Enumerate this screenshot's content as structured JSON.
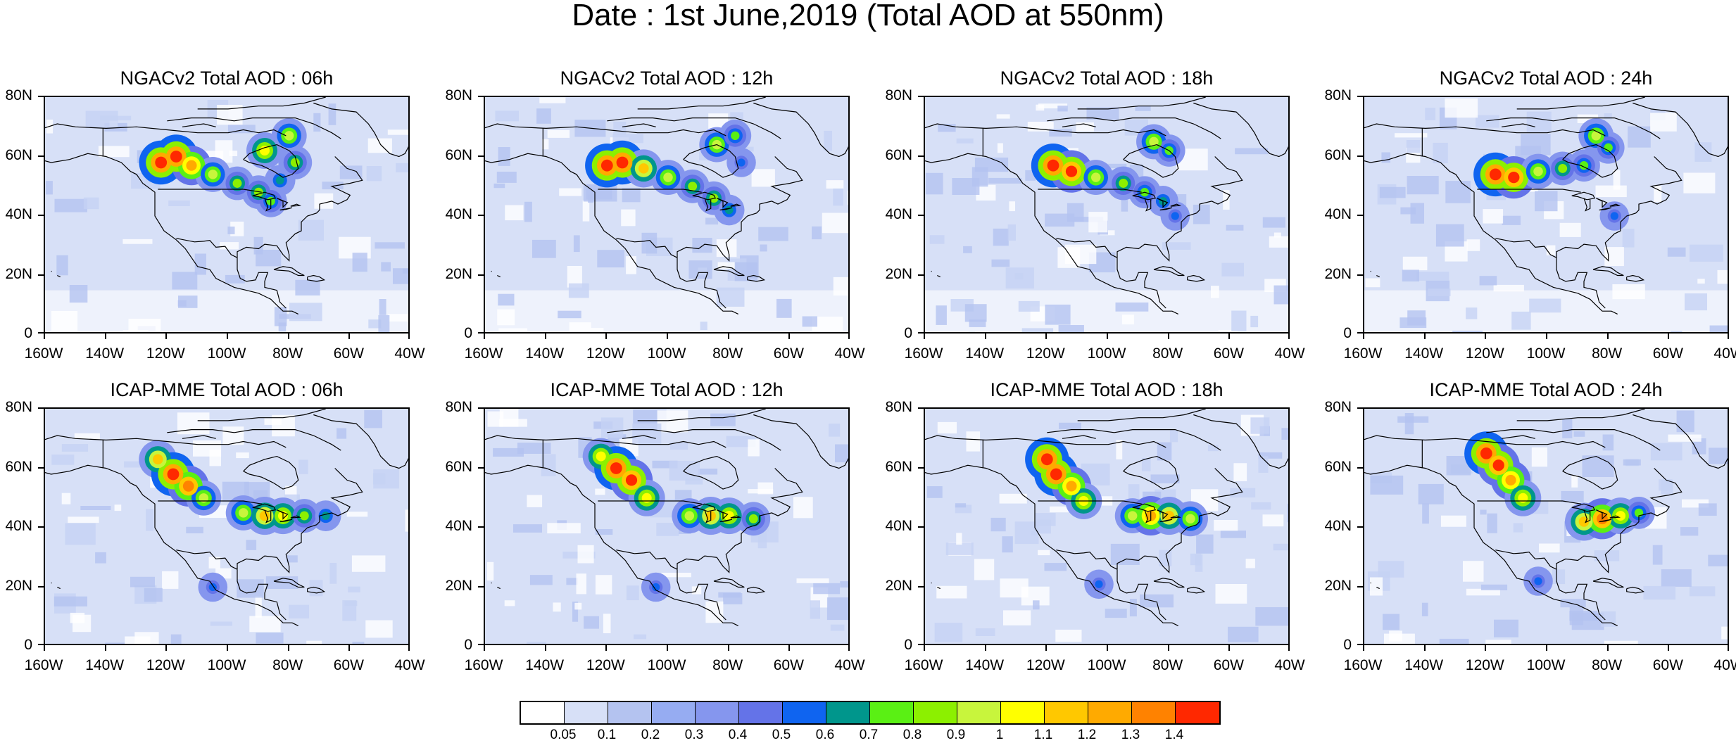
{
  "title": "Date : 1st June,2019 (Total AOD at 550nm)",
  "panels": [
    {
      "title": "NGACv2 Total AOD : 06h"
    },
    {
      "title": "NGACv2 Total AOD : 12h"
    },
    {
      "title": "NGACv2 Total AOD : 18h"
    },
    {
      "title": "NGACv2 Total AOD : 24h"
    },
    {
      "title": "ICAP-MME Total AOD : 06h"
    },
    {
      "title": "ICAP-MME Total AOD : 12h"
    },
    {
      "title": "ICAP-MME Total AOD : 18h"
    },
    {
      "title": "ICAP-MME Total AOD : 24h"
    }
  ],
  "axes": {
    "lat_labels": [
      "80N",
      "60N",
      "40N",
      "20N",
      "0"
    ],
    "lon_labels": [
      "160W",
      "140W",
      "120W",
      "100W",
      "80W",
      "60W",
      "40W"
    ]
  },
  "colorbar": {
    "labels": [
      "0.05",
      "0.1",
      "0.2",
      "0.3",
      "0.4",
      "0.5",
      "0.6",
      "0.7",
      "0.8",
      "0.9",
      "1",
      "1.1",
      "1.2",
      "1.3",
      "1.4"
    ],
    "colors": [
      "#ffffff",
      "#d7e0f7",
      "#b4c3f0",
      "#96acf2",
      "#8596ee",
      "#6473e8",
      "#0f64f0",
      "#00968c",
      "#5af014",
      "#8cf000",
      "#c8f53c",
      "#ffff00",
      "#ffc800",
      "#ffaa00",
      "#ff8200",
      "#ff2800"
    ]
  },
  "chart_data": {
    "type": "heatmap",
    "variable": "Total AOD at 550nm",
    "lat_range": [
      0,
      80
    ],
    "lon_range": [
      -160,
      -40
    ],
    "plumes": [
      {
        "panel": 0,
        "points": [
          [
            -122,
            58,
            1.5
          ],
          [
            -117,
            60,
            1.5
          ],
          [
            -112,
            57,
            1.2
          ],
          [
            -105,
            54,
            0.9
          ],
          [
            -97,
            51,
            0.8
          ],
          [
            -90,
            48,
            0.8
          ],
          [
            -86,
            45,
            0.7
          ],
          [
            -88,
            62,
            1.0
          ],
          [
            -80,
            67,
            0.9
          ],
          [
            -78,
            58,
            0.8
          ],
          [
            -83,
            52,
            0.6
          ]
        ]
      },
      {
        "panel": 1,
        "points": [
          [
            -120,
            57,
            1.5
          ],
          [
            -115,
            58,
            1.5
          ],
          [
            -108,
            56,
            1.1
          ],
          [
            -100,
            53,
            0.9
          ],
          [
            -92,
            50,
            0.8
          ],
          [
            -85,
            46,
            0.8
          ],
          [
            -80,
            42,
            0.6
          ],
          [
            -84,
            64,
            0.9
          ],
          [
            -78,
            67,
            0.7
          ],
          [
            -76,
            58,
            0.5
          ]
        ]
      },
      {
        "panel": 2,
        "points": [
          [
            -118,
            57,
            1.5
          ],
          [
            -112,
            55,
            1.4
          ],
          [
            -104,
            53,
            0.9
          ],
          [
            -95,
            51,
            0.8
          ],
          [
            -88,
            48,
            0.7
          ],
          [
            -82,
            45,
            0.6
          ],
          [
            -85,
            65,
            0.9
          ],
          [
            -80,
            62,
            0.7
          ],
          [
            -78,
            40,
            0.5
          ]
        ]
      },
      {
        "panel": 3,
        "points": [
          [
            -117,
            54,
            1.5
          ],
          [
            -111,
            53,
            1.4
          ],
          [
            -103,
            55,
            0.9
          ],
          [
            -95,
            56,
            0.8
          ],
          [
            -88,
            57,
            0.7
          ],
          [
            -84,
            67,
            0.9
          ],
          [
            -80,
            63,
            0.7
          ],
          [
            -78,
            40,
            0.5
          ]
        ]
      },
      {
        "panel": 4,
        "points": [
          [
            -123,
            63,
            1.1
          ],
          [
            -118,
            58,
            1.5
          ],
          [
            -113,
            54,
            1.3
          ],
          [
            -108,
            50,
            0.9
          ],
          [
            -95,
            45,
            0.9
          ],
          [
            -88,
            44,
            1.1
          ],
          [
            -82,
            44,
            1.0
          ],
          [
            -75,
            44,
            0.8
          ],
          [
            -68,
            44,
            0.6
          ],
          [
            -105,
            20,
            0.5
          ]
        ]
      },
      {
        "panel": 5,
        "points": [
          [
            -122,
            64,
            1.0
          ],
          [
            -117,
            60,
            1.5
          ],
          [
            -112,
            56,
            1.4
          ],
          [
            -107,
            50,
            1.0
          ],
          [
            -93,
            44,
            0.9
          ],
          [
            -86,
            44,
            1.1
          ],
          [
            -80,
            44,
            1.0
          ],
          [
            -72,
            43,
            0.8
          ],
          [
            -104,
            20,
            0.5
          ]
        ]
      },
      {
        "panel": 6,
        "points": [
          [
            -120,
            63,
            1.5
          ],
          [
            -117,
            58,
            1.5
          ],
          [
            -112,
            54,
            1.2
          ],
          [
            -108,
            49,
            1.0
          ],
          [
            -92,
            44,
            0.9
          ],
          [
            -86,
            44,
            1.2
          ],
          [
            -80,
            44,
            1.1
          ],
          [
            -73,
            43,
            0.9
          ],
          [
            -103,
            21,
            0.5
          ]
        ]
      },
      {
        "panel": 7,
        "points": [
          [
            -120,
            65,
            1.5
          ],
          [
            -116,
            61,
            1.4
          ],
          [
            -112,
            56,
            1.2
          ],
          [
            -108,
            50,
            1.0
          ],
          [
            -88,
            42,
            1.1
          ],
          [
            -82,
            43,
            1.3
          ],
          [
            -76,
            44,
            1.0
          ],
          [
            -70,
            45,
            0.7
          ],
          [
            -103,
            22,
            0.5
          ]
        ]
      }
    ]
  }
}
